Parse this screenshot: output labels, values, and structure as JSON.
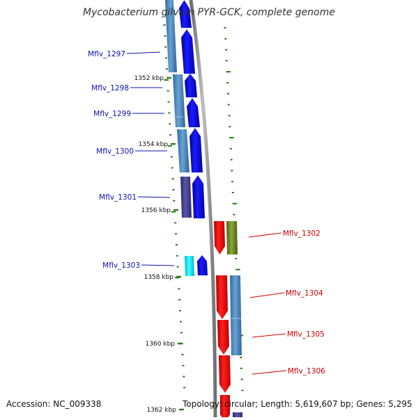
{
  "title": "Mycobacterium gilvum PYR-GCK, complete genome",
  "footer": {
    "accession": "Accession: NC_009338",
    "summary": "Topology: circular; Length: 5,619,607 bp; Genes: 5,295"
  },
  "colors": {
    "forward_label": "#1010b0",
    "reverse_label": "#cc0000",
    "backbone": "#888888",
    "tick": "#2a7a1a"
  },
  "scale_labels": [
    "1352 kbp",
    "1354 kbp",
    "1356 kbp",
    "1358 kbp",
    "1360 kbp",
    "1362 kbp"
  ],
  "genes": [
    {
      "name": "Mflv_1297",
      "strand": "forward"
    },
    {
      "name": "Mflv_1298",
      "strand": "forward"
    },
    {
      "name": "Mflv_1299",
      "strand": "forward"
    },
    {
      "name": "Mflv_1300",
      "strand": "forward"
    },
    {
      "name": "Mflv_1301",
      "strand": "forward"
    },
    {
      "name": "Mflv_1302",
      "strand": "reverse"
    },
    {
      "name": "Mflv_1303",
      "strand": "forward"
    },
    {
      "name": "Mflv_1304",
      "strand": "reverse"
    },
    {
      "name": "Mflv_1305",
      "strand": "reverse"
    },
    {
      "name": "Mflv_1306",
      "strand": "reverse"
    }
  ]
}
